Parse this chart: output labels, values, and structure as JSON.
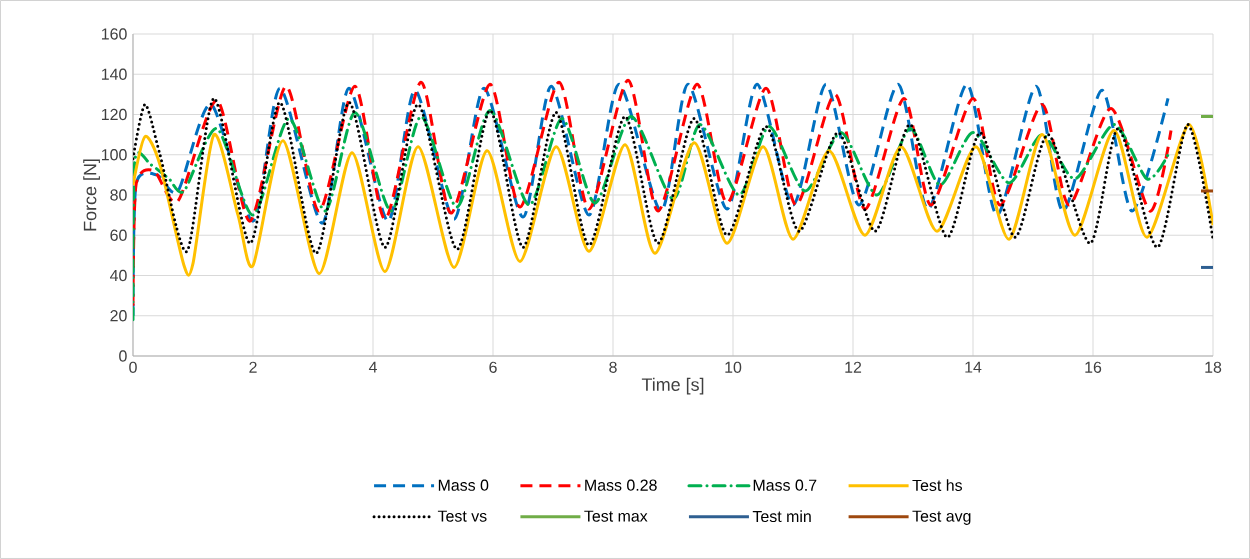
{
  "chart_data": {
    "type": "line",
    "xlabel": "Time [s]",
    "ylabel": "Force [N]",
    "xlim": [
      0,
      18
    ],
    "ylim": [
      0,
      160
    ],
    "xticks": [
      0,
      2,
      4,
      6,
      8,
      10,
      12,
      14,
      16,
      18
    ],
    "yticks": [
      0,
      20,
      40,
      60,
      80,
      100,
      120,
      140,
      160
    ],
    "grid": true,
    "legend": "bottom",
    "series": [
      {
        "name": "Mass 0",
        "color": "#0070c0",
        "line_style": "dashed",
        "x": [
          0,
          0.05,
          0.4,
          0.75,
          1.3,
          2.0,
          2.45,
          3.15,
          3.6,
          4.25,
          4.7,
          5.35,
          5.85,
          6.5,
          6.97,
          7.6,
          8.1,
          8.8,
          9.25,
          9.9,
          10.4,
          11.0,
          11.55,
          12.1,
          12.75,
          13.25,
          13.9,
          14.4,
          15.05,
          15.5,
          16.15,
          16.65,
          17.25
        ],
        "values": [
          20,
          85,
          90,
          82,
          125,
          67,
          133,
          66,
          133,
          67,
          132,
          68,
          133,
          69,
          134,
          70,
          135,
          72,
          135,
          73,
          135,
          75,
          135,
          75,
          135,
          73,
          135,
          70,
          134,
          72,
          132,
          72,
          128
        ]
      },
      {
        "name": "Mass 0.28",
        "color": "#ff0000",
        "line_style": "dashed",
        "x": [
          0,
          0.05,
          0.35,
          0.75,
          1.4,
          1.95,
          2.55,
          3.1,
          3.7,
          4.2,
          4.8,
          5.3,
          5.95,
          6.45,
          7.1,
          7.6,
          8.25,
          8.75,
          9.4,
          9.9,
          10.55,
          11.05,
          11.7,
          12.2,
          12.85,
          13.3,
          14.0,
          14.45,
          15.15,
          15.6,
          16.3,
          16.95,
          17.3
        ],
        "values": [
          25,
          85,
          92,
          77,
          127,
          67,
          134,
          72,
          134,
          68,
          136,
          71,
          135,
          74,
          136,
          73,
          137,
          72,
          135,
          76,
          133,
          75,
          130,
          73,
          128,
          75,
          128,
          75,
          125,
          75,
          123,
          72,
          112
        ]
      },
      {
        "name": "Mass 0.7",
        "color": "#00b050",
        "line_style": "dashdot",
        "x": [
          0,
          0.03,
          0.3,
          0.6,
          0.85,
          1.4,
          2.0,
          2.6,
          3.2,
          3.7,
          4.3,
          4.8,
          5.4,
          5.95,
          6.6,
          7.15,
          7.7,
          8.3,
          9.0,
          9.45,
          10.1,
          10.6,
          11.2,
          11.8,
          12.4,
          12.95,
          13.45,
          14.0,
          14.6,
          15.15,
          15.7,
          16.35,
          16.9,
          17.25
        ],
        "values": [
          18,
          97,
          95,
          88,
          82,
          113,
          70,
          118,
          72,
          121,
          72,
          119,
          74,
          122,
          75,
          118,
          76,
          119,
          78,
          115,
          80,
          114,
          82,
          111,
          80,
          113,
          85,
          111,
          86,
          110,
          88,
          115,
          88,
          100
        ]
      },
      {
        "name": "Test hs",
        "color": "#ffc000",
        "line_style": "solid",
        "x": [
          0,
          0.2,
          0.45,
          0.85,
          1.0,
          1.35,
          1.75,
          2.0,
          2.5,
          3.1,
          3.65,
          4.2,
          4.75,
          5.35,
          5.9,
          6.45,
          7.05,
          7.6,
          8.2,
          8.7,
          9.35,
          9.9,
          10.5,
          11.0,
          11.6,
          12.2,
          12.8,
          13.4,
          14.05,
          14.6,
          15.15,
          15.7,
          16.35,
          16.9,
          17.6,
          18
        ],
        "values": [
          85,
          109,
          95,
          45,
          46,
          110,
          70,
          45,
          107,
          41,
          101,
          42,
          104,
          44,
          102,
          47,
          104,
          52,
          105,
          51,
          106,
          56,
          104,
          58,
          102,
          60,
          104,
          62,
          104,
          58,
          110,
          60,
          112,
          59,
          115,
          65
        ]
      },
      {
        "name": "Test vs",
        "color": "#000000",
        "line_style": "dotted",
        "x": [
          0,
          0.2,
          0.45,
          0.9,
          1.35,
          1.95,
          2.45,
          3.05,
          3.6,
          4.2,
          4.75,
          5.4,
          5.95,
          6.5,
          7.05,
          7.6,
          8.2,
          8.75,
          9.35,
          9.9,
          10.55,
          11.1,
          11.75,
          12.37,
          12.95,
          13.57,
          14.12,
          14.7,
          15.25,
          15.95,
          16.42,
          17.07,
          17.58,
          18
        ],
        "values": [
          98,
          125,
          100,
          52,
          128,
          56,
          126,
          51,
          126,
          54,
          125,
          53,
          122,
          54,
          121,
          55,
          119,
          56,
          118,
          60,
          114,
          62,
          111,
          62,
          115,
          59,
          111,
          59,
          110,
          56,
          113,
          54,
          115,
          58
        ]
      },
      {
        "name": "Test max",
        "color": "#70ad47",
        "line_style": "solid",
        "x": [
          17.8,
          18
        ],
        "values": [
          119,
          119
        ]
      },
      {
        "name": "Test min",
        "color": "#2e5f91",
        "line_style": "solid",
        "x": [
          17.8,
          18
        ],
        "values": [
          44,
          44
        ]
      },
      {
        "name": "Test avg",
        "color": "#9e480e",
        "line_style": "solid",
        "x": [
          17.8,
          18
        ],
        "values": [
          82,
          82
        ]
      }
    ]
  }
}
